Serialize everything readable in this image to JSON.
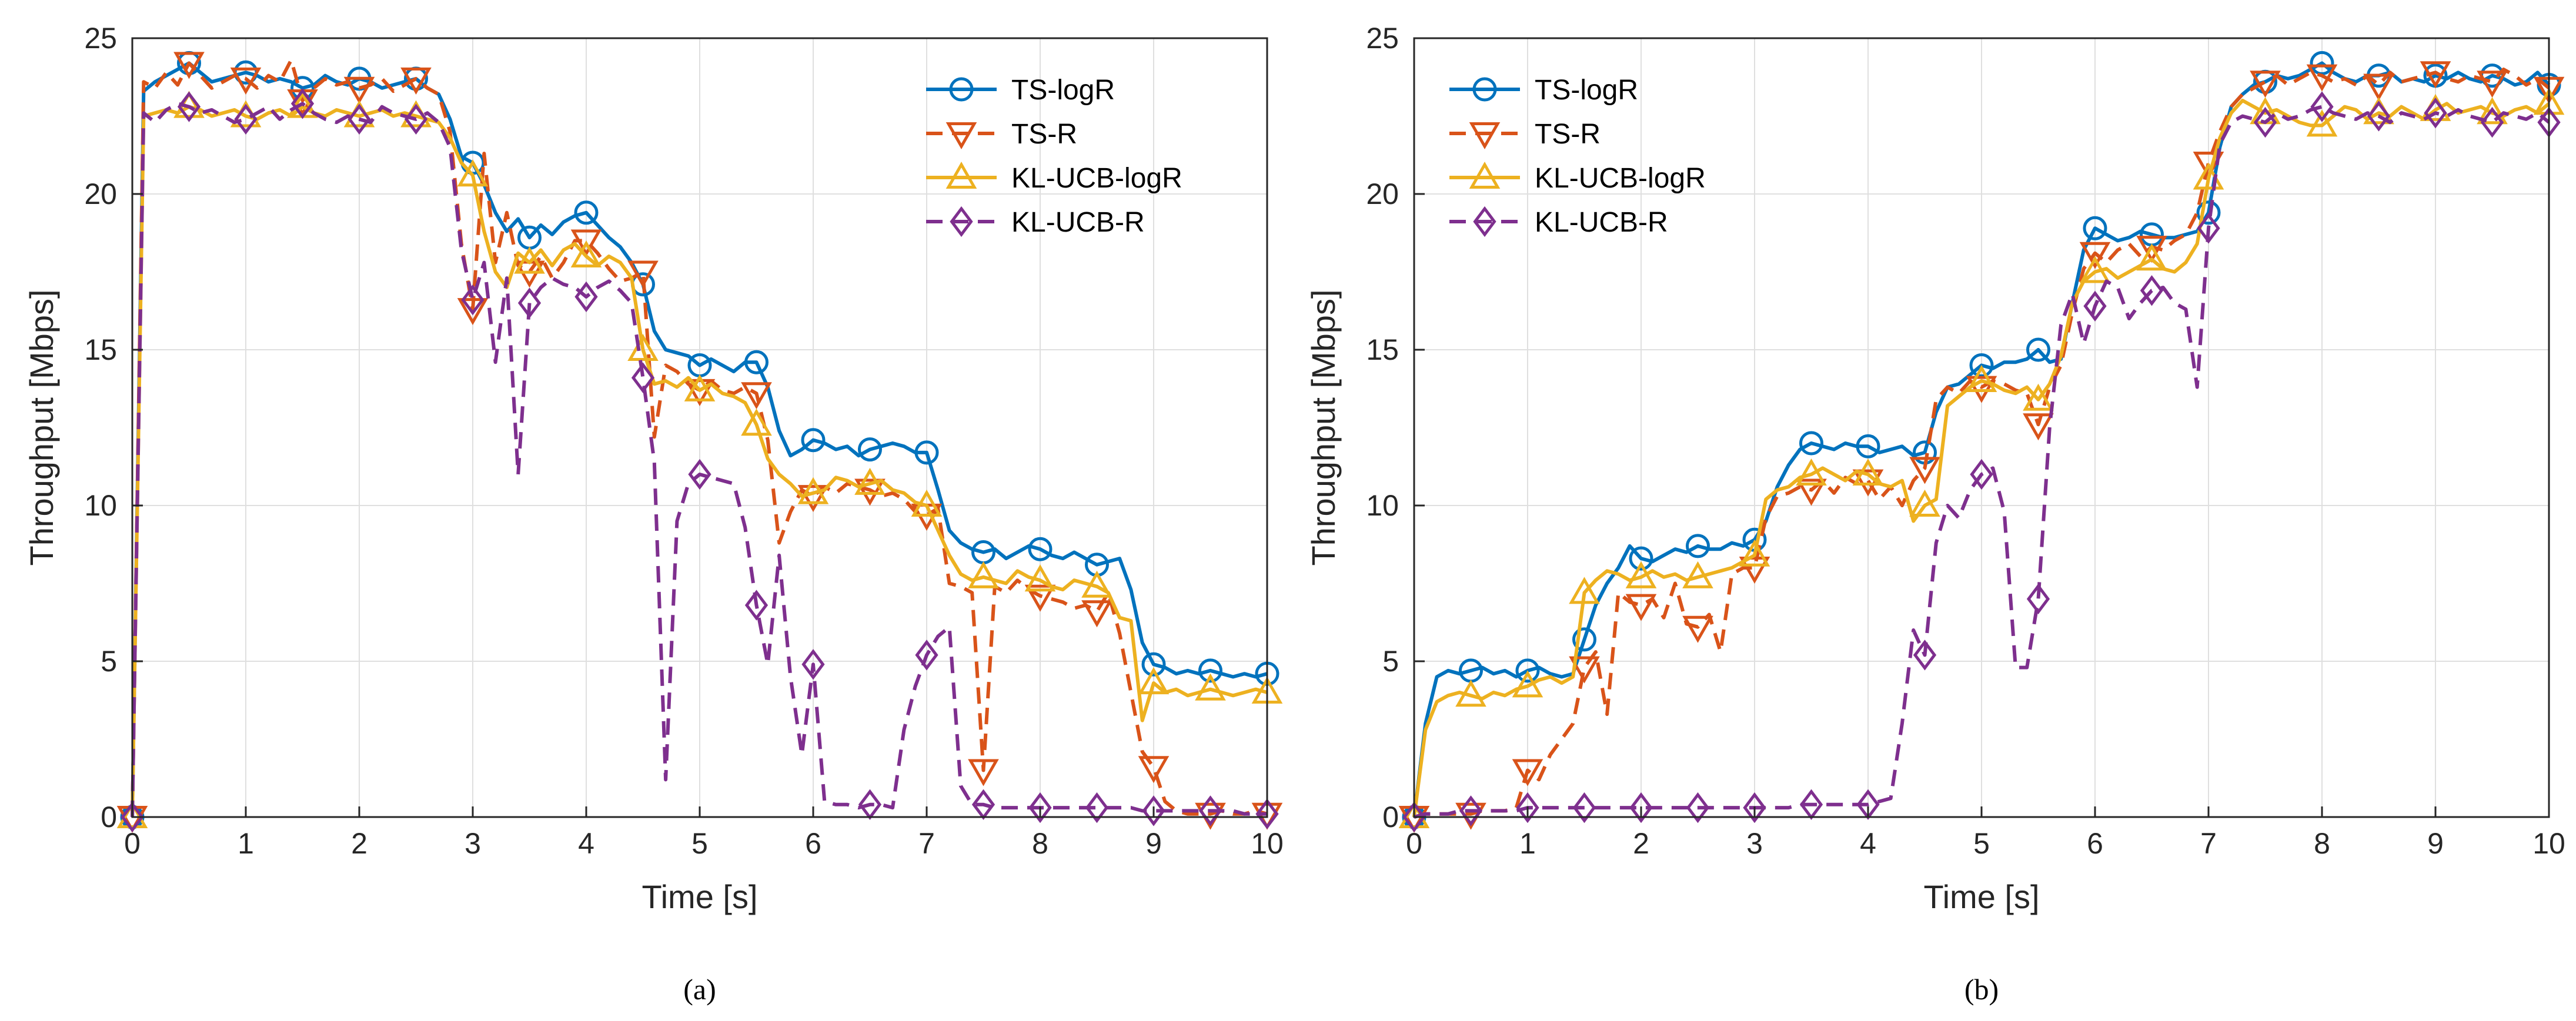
{
  "chart_data": [
    {
      "type": "line",
      "caption": "(a)",
      "xlabel": "Time [s]",
      "ylabel": "Throughput [Mbps]",
      "xlim": [
        0,
        10
      ],
      "ylim": [
        0,
        25
      ],
      "xticks": [
        "0",
        "1",
        "2",
        "3",
        "4",
        "5",
        "6",
        "7",
        "8",
        "9",
        "10"
      ],
      "yticks": [
        "0",
        "5",
        "10",
        "15",
        "20",
        "25"
      ],
      "grid": true,
      "legend_position": "top-right",
      "x": [
        0,
        0.1,
        0.2,
        0.3,
        0.4,
        0.5,
        0.6,
        0.7,
        0.8,
        0.9,
        1,
        1.1,
        1.2,
        1.3,
        1.4,
        1.5,
        1.6,
        1.7,
        1.8,
        1.9,
        2,
        2.1,
        2.2,
        2.3,
        2.4,
        2.5,
        2.6,
        2.7,
        2.8,
        2.9,
        3,
        3.1,
        3.2,
        3.3,
        3.4,
        3.5,
        3.6,
        3.7,
        3.8,
        3.9,
        4,
        4.1,
        4.2,
        4.3,
        4.4,
        4.5,
        4.6,
        4.7,
        4.8,
        4.9,
        5,
        5.1,
        5.2,
        5.3,
        5.4,
        5.5,
        5.6,
        5.7,
        5.8,
        5.9,
        6,
        6.1,
        6.2,
        6.3,
        6.4,
        6.5,
        6.6,
        6.7,
        6.8,
        6.9,
        7,
        7.1,
        7.2,
        7.3,
        7.4,
        7.5,
        7.6,
        7.7,
        7.8,
        7.9,
        8,
        8.1,
        8.2,
        8.3,
        8.4,
        8.5,
        8.6,
        8.7,
        8.8,
        8.9,
        9,
        9.1,
        9.2,
        9.3,
        9.4,
        9.5,
        9.6,
        9.7,
        9.8,
        9.9,
        10
      ],
      "marker_every": 5,
      "series": [
        {
          "name": "TS-logR",
          "color": "#0072BD",
          "dash": "solid",
          "marker": "circle",
          "values": [
            0,
            23.3,
            23.6,
            23.8,
            24.0,
            24.2,
            23.9,
            23.6,
            23.7,
            23.8,
            23.9,
            23.8,
            23.6,
            23.7,
            23.6,
            23.4,
            23.5,
            23.8,
            23.6,
            23.5,
            23.7,
            23.6,
            23.4,
            23.5,
            23.6,
            23.7,
            23.4,
            23.2,
            22.4,
            21.2,
            21.0,
            20.3,
            19.4,
            18.8,
            19.2,
            18.6,
            19.0,
            18.7,
            19.1,
            19.3,
            19.4,
            19.0,
            18.6,
            18.3,
            17.8,
            17.1,
            15.6,
            15.0,
            14.9,
            14.8,
            14.5,
            14.7,
            14.5,
            14.3,
            14.6,
            14.6,
            13.8,
            12.4,
            11.6,
            11.8,
            12.1,
            12.0,
            11.8,
            11.9,
            11.6,
            11.8,
            11.9,
            12.0,
            11.9,
            11.7,
            11.7,
            10.5,
            9.2,
            8.8,
            8.6,
            8.5,
            8.6,
            8.3,
            8.5,
            8.7,
            8.6,
            8.4,
            8.3,
            8.5,
            8.3,
            8.1,
            8.2,
            8.3,
            7.3,
            5.6,
            4.9,
            4.8,
            4.6,
            4.7,
            4.6,
            4.7,
            4.6,
            4.5,
            4.6,
            4.5,
            4.6
          ]
        },
        {
          "name": "TS-R",
          "color": "#D95319",
          "dash": "dashed",
          "marker": "triangle-down",
          "values": [
            0,
            23.6,
            23.4,
            23.9,
            23.5,
            24.2,
            23.8,
            23.4,
            23.6,
            23.8,
            23.7,
            23.4,
            23.8,
            23.6,
            24.3,
            23.0,
            23.4,
            23.7,
            23.5,
            23.6,
            23.4,
            23.5,
            23.7,
            23.3,
            23.5,
            23.7,
            23.4,
            23.2,
            22.0,
            18.4,
            16.3,
            21.3,
            17.8,
            19.4,
            17.7,
            17.5,
            18.0,
            17.3,
            17.8,
            18.5,
            18.5,
            18.1,
            17.6,
            17.2,
            17.3,
            17.5,
            12.2,
            14.5,
            14.3,
            13.9,
            13.7,
            14.0,
            13.7,
            13.6,
            13.8,
            13.6,
            12.1,
            8.8,
            9.8,
            10.5,
            10.3,
            10.6,
            10.4,
            10.7,
            10.6,
            10.5,
            10.3,
            10.4,
            10.2,
            9.8,
            9.7,
            9.9,
            7.5,
            7.4,
            7.2,
            1.5,
            7.4,
            7.2,
            7.6,
            7.3,
            7.1,
            7.0,
            6.9,
            6.7,
            6.8,
            6.6,
            7.2,
            5.9,
            4.0,
            2.1,
            1.6,
            0.5,
            0.2,
            0.1,
            0.1,
            0.1,
            0.2,
            0.1,
            0.1,
            0.2,
            0.1
          ]
        },
        {
          "name": "KL-UCB-logR",
          "color": "#EDB120",
          "dash": "solid",
          "marker": "triangle-up",
          "values": [
            0,
            22.5,
            22.6,
            22.7,
            22.6,
            22.8,
            22.7,
            22.5,
            22.6,
            22.7,
            22.5,
            22.4,
            22.6,
            22.7,
            22.5,
            22.8,
            22.6,
            22.5,
            22.7,
            22.6,
            22.5,
            22.6,
            22.7,
            22.5,
            22.6,
            22.5,
            22.4,
            22.3,
            21.8,
            21.0,
            20.6,
            18.8,
            17.5,
            17.0,
            18.1,
            17.8,
            18.2,
            17.7,
            18.2,
            18.4,
            18.0,
            17.7,
            18.0,
            17.8,
            17.3,
            15.0,
            13.9,
            14.0,
            13.8,
            14.1,
            13.7,
            13.9,
            13.6,
            13.5,
            13.3,
            12.6,
            11.5,
            11.0,
            10.7,
            10.3,
            10.4,
            10.5,
            10.9,
            10.8,
            10.6,
            10.7,
            10.8,
            10.5,
            10.4,
            10.1,
            10.0,
            9.2,
            8.4,
            7.8,
            7.6,
            7.7,
            7.6,
            7.5,
            7.9,
            7.7,
            7.6,
            7.4,
            7.3,
            7.6,
            7.5,
            7.4,
            7.2,
            6.4,
            6.3,
            3.1,
            4.3,
            4.0,
            4.1,
            3.9,
            4.0,
            4.1,
            4.0,
            3.9,
            4.0,
            4.1,
            4.0
          ]
        },
        {
          "name": "KL-UCB-R",
          "color": "#7E2F8E",
          "dash": "dashed",
          "marker": "diamond",
          "values": [
            0,
            22.6,
            22.3,
            22.7,
            22.9,
            22.8,
            22.6,
            22.7,
            22.5,
            22.3,
            22.4,
            22.6,
            22.8,
            22.4,
            22.7,
            22.9,
            22.6,
            22.4,
            22.3,
            22.5,
            22.4,
            22.3,
            22.8,
            22.6,
            22.5,
            22.4,
            22.6,
            22.3,
            21.5,
            18.2,
            16.6,
            17.8,
            14.6,
            17.3,
            11.0,
            16.5,
            17.0,
            17.3,
            17.1,
            17.0,
            16.7,
            17.0,
            17.2,
            16.9,
            16.5,
            14.1,
            11.4,
            1.2,
            9.5,
            10.7,
            11.0,
            10.9,
            10.8,
            10.7,
            9.3,
            6.8,
            4.9,
            8.4,
            4.5,
            2.0,
            4.9,
            0.5,
            0.4,
            0.4,
            0.3,
            0.4,
            0.4,
            0.3,
            2.8,
            4.2,
            5.2,
            5.8,
            6.1,
            1.0,
            0.4,
            0.4,
            0.3,
            0.3,
            0.3,
            0.3,
            0.3,
            0.3,
            0.3,
            0.3,
            0.3,
            0.3,
            0.3,
            0.3,
            0.3,
            0.2,
            0.2,
            0.2,
            0.2,
            0.2,
            0.2,
            0.2,
            0.2,
            0.2,
            0.1,
            0.1,
            0.1
          ]
        }
      ]
    },
    {
      "type": "line",
      "caption": "(b)",
      "xlabel": "Time [s]",
      "ylabel": "Throughput [Mbps]",
      "xlim": [
        0,
        10
      ],
      "ylim": [
        0,
        25
      ],
      "xticks": [
        "0",
        "1",
        "2",
        "3",
        "4",
        "5",
        "6",
        "7",
        "8",
        "9",
        "10"
      ],
      "yticks": [
        "0",
        "5",
        "10",
        "15",
        "20",
        "25"
      ],
      "grid": true,
      "legend_position": "top-left",
      "x": [
        0,
        0.1,
        0.2,
        0.3,
        0.4,
        0.5,
        0.6,
        0.7,
        0.8,
        0.9,
        1,
        1.1,
        1.2,
        1.3,
        1.4,
        1.5,
        1.6,
        1.7,
        1.8,
        1.9,
        2,
        2.1,
        2.2,
        2.3,
        2.4,
        2.5,
        2.6,
        2.7,
        2.8,
        2.9,
        3,
        3.1,
        3.2,
        3.3,
        3.4,
        3.5,
        3.6,
        3.7,
        3.8,
        3.9,
        4,
        4.1,
        4.2,
        4.3,
        4.4,
        4.5,
        4.6,
        4.7,
        4.8,
        4.9,
        5,
        5.1,
        5.2,
        5.3,
        5.4,
        5.5,
        5.6,
        5.7,
        5.8,
        5.9,
        6,
        6.1,
        6.2,
        6.3,
        6.4,
        6.5,
        6.6,
        6.7,
        6.8,
        6.9,
        7,
        7.1,
        7.2,
        7.3,
        7.4,
        7.5,
        7.6,
        7.7,
        7.8,
        7.9,
        8,
        8.1,
        8.2,
        8.3,
        8.4,
        8.5,
        8.6,
        8.7,
        8.8,
        8.9,
        9,
        9.1,
        9.2,
        9.3,
        9.4,
        9.5,
        9.6,
        9.7,
        9.8,
        9.9,
        10
      ],
      "marker_every": 5,
      "series": [
        {
          "name": "TS-logR",
          "color": "#0072BD",
          "dash": "solid",
          "marker": "circle",
          "values": [
            0,
            3.0,
            4.5,
            4.7,
            4.6,
            4.7,
            4.8,
            4.6,
            4.7,
            4.5,
            4.7,
            4.8,
            4.6,
            4.5,
            4.6,
            5.7,
            6.8,
            7.5,
            8.0,
            8.7,
            8.3,
            8.2,
            8.4,
            8.6,
            8.5,
            8.7,
            8.6,
            8.6,
            8.8,
            8.7,
            8.9,
            9.5,
            10.6,
            11.3,
            11.8,
            12.0,
            11.9,
            11.8,
            12.0,
            11.9,
            11.9,
            11.7,
            11.8,
            11.9,
            11.6,
            11.7,
            13.0,
            13.8,
            13.9,
            14.2,
            14.5,
            14.4,
            14.6,
            14.6,
            14.7,
            15.0,
            14.6,
            14.7,
            16.5,
            18.2,
            18.9,
            18.7,
            18.5,
            18.6,
            18.8,
            18.7,
            18.6,
            18.6,
            18.7,
            18.8,
            19.4,
            21.5,
            22.8,
            23.2,
            23.5,
            23.6,
            23.8,
            23.7,
            23.8,
            24.0,
            24.2,
            23.9,
            23.7,
            23.6,
            23.8,
            23.8,
            23.9,
            23.6,
            23.7,
            23.6,
            23.8,
            23.7,
            23.9,
            23.7,
            23.6,
            23.8,
            23.7,
            23.5,
            23.6,
            23.9,
            23.5
          ]
        },
        {
          "name": "TS-R",
          "color": "#D95319",
          "dash": "dashed",
          "marker": "triangle-down",
          "values": [
            0,
            0.1,
            0.1,
            0.1,
            0.1,
            0.1,
            0.2,
            0.2,
            0.2,
            0.3,
            1.5,
            1.2,
            2.0,
            2.5,
            3.0,
            4.8,
            5.3,
            3.3,
            7.2,
            6.9,
            6.8,
            7.0,
            6.4,
            7.5,
            6.2,
            6.1,
            6.5,
            5.3,
            7.8,
            8.0,
            8.0,
            9.6,
            10.3,
            10.4,
            10.6,
            10.5,
            10.8,
            10.4,
            10.9,
            10.7,
            10.8,
            10.2,
            10.6,
            10.0,
            10.8,
            11.2,
            13.4,
            13.8,
            13.6,
            14.0,
            13.8,
            14.0,
            13.9,
            13.7,
            13.6,
            12.6,
            13.8,
            14.5,
            16.2,
            17.6,
            18.1,
            17.8,
            18.2,
            18.4,
            18.0,
            18.3,
            18.2,
            18.5,
            18.7,
            19.4,
            21.0,
            22.0,
            22.8,
            23.2,
            23.4,
            23.6,
            23.8,
            23.5,
            23.7,
            23.9,
            23.8,
            23.6,
            23.7,
            23.5,
            23.8,
            23.5,
            23.9,
            23.6,
            23.7,
            23.8,
            23.9,
            23.7,
            23.6,
            23.8,
            23.7,
            23.6,
            24.0,
            23.8,
            23.5,
            23.7,
            23.4
          ]
        },
        {
          "name": "KL-UCB-logR",
          "color": "#EDB120",
          "dash": "solid",
          "marker": "triangle-up",
          "values": [
            0,
            2.8,
            3.7,
            3.9,
            4.0,
            3.9,
            3.8,
            4.0,
            3.9,
            4.1,
            4.2,
            4.4,
            4.5,
            4.3,
            4.5,
            7.2,
            7.6,
            7.9,
            7.8,
            7.6,
            7.7,
            7.9,
            7.7,
            7.8,
            7.6,
            7.7,
            7.8,
            7.9,
            8.0,
            8.2,
            8.4,
            10.2,
            10.5,
            10.6,
            10.9,
            11.0,
            11.2,
            11.0,
            10.8,
            11.1,
            11.0,
            10.7,
            10.6,
            10.8,
            9.5,
            10.0,
            10.2,
            13.2,
            13.5,
            13.8,
            14.0,
            13.9,
            13.7,
            13.6,
            13.8,
            13.4,
            13.9,
            14.8,
            16.5,
            17.2,
            17.5,
            17.6,
            17.3,
            17.5,
            17.7,
            17.9,
            17.6,
            17.5,
            17.8,
            18.4,
            20.5,
            21.8,
            22.6,
            23.0,
            22.8,
            22.6,
            22.7,
            22.5,
            22.3,
            22.2,
            22.2,
            22.5,
            22.8,
            22.7,
            22.4,
            22.6,
            22.5,
            22.8,
            22.6,
            22.4,
            22.7,
            22.9,
            22.6,
            22.7,
            22.8,
            22.6,
            22.5,
            22.7,
            22.8,
            22.6,
            22.9
          ]
        },
        {
          "name": "KL-UCB-R",
          "color": "#7E2F8E",
          "dash": "dashed",
          "marker": "diamond",
          "values": [
            0,
            0.1,
            0.1,
            0.1,
            0.2,
            0.2,
            0.2,
            0.2,
            0.2,
            0.2,
            0.3,
            0.3,
            0.3,
            0.3,
            0.3,
            0.3,
            0.3,
            0.3,
            0.3,
            0.3,
            0.3,
            0.3,
            0.3,
            0.3,
            0.3,
            0.3,
            0.3,
            0.3,
            0.3,
            0.3,
            0.3,
            0.3,
            0.3,
            0.3,
            0.4,
            0.4,
            0.4,
            0.4,
            0.4,
            0.4,
            0.4,
            0.5,
            0.6,
            3.0,
            6.0,
            5.2,
            8.8,
            10.0,
            9.6,
            10.5,
            11.0,
            11.2,
            9.8,
            4.8,
            4.8,
            7.0,
            12.5,
            15.8,
            16.8,
            15.2,
            16.4,
            17.2,
            17.0,
            16.0,
            16.5,
            16.9,
            17.0,
            16.5,
            16.3,
            13.8,
            18.9,
            21.6,
            22.3,
            22.5,
            22.4,
            22.3,
            22.6,
            22.4,
            22.5,
            22.7,
            22.8,
            22.6,
            22.5,
            22.4,
            22.6,
            22.5,
            22.3,
            22.6,
            22.5,
            22.4,
            22.6,
            22.5,
            22.7,
            22.5,
            22.4,
            22.3,
            22.6,
            22.5,
            22.4,
            22.6,
            22.3
          ]
        }
      ]
    }
  ]
}
